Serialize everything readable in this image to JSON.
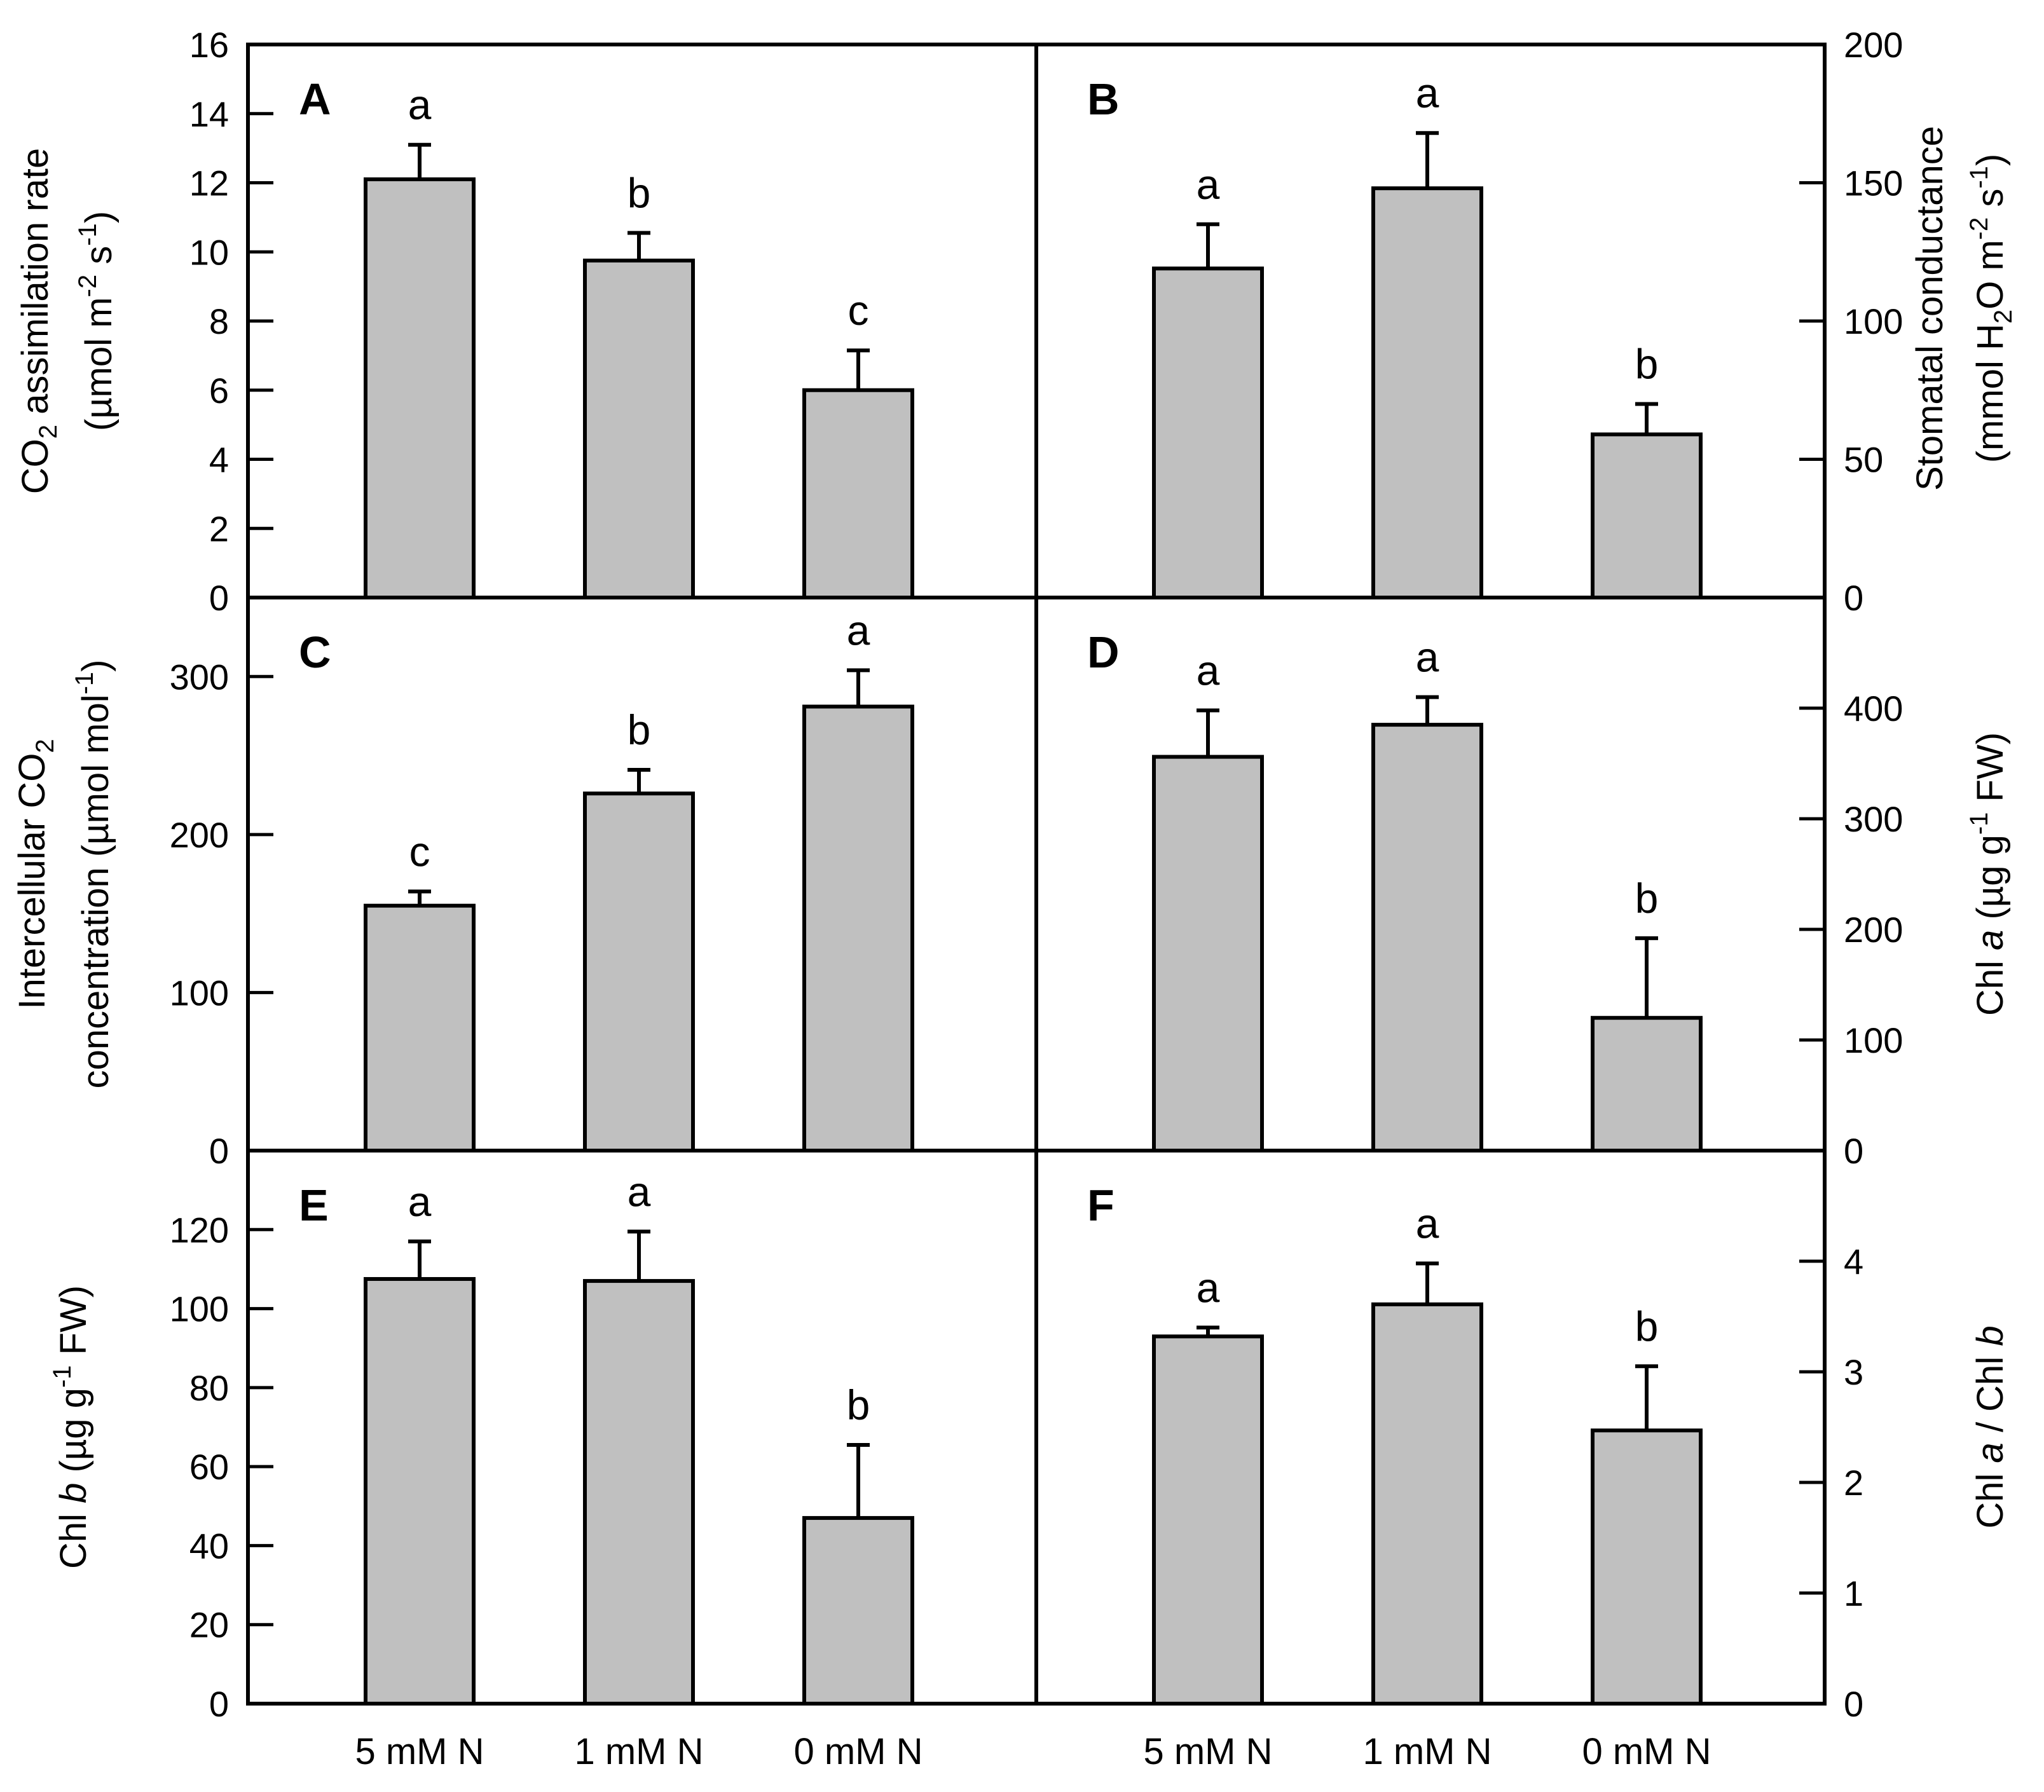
{
  "chart_data": [
    {
      "panel": "A",
      "type": "bar",
      "axis": "left",
      "categories": [
        "5 mM N",
        "1 mM N",
        "0 mM N"
      ],
      "values": [
        12.1,
        9.75,
        6.0
      ],
      "errors": [
        1.0,
        0.8,
        1.15
      ],
      "significance": [
        "a",
        "b",
        "c"
      ],
      "ylim": [
        0,
        16
      ],
      "yticks": [
        "0",
        "2",
        "4",
        "6",
        "8",
        "10",
        "12",
        "14",
        "16"
      ],
      "ylabel_line1": "CO",
      "ylabel_line1_sub": "2",
      "ylabel_line1_rest": " assimilation rate",
      "ylabel_line2_pre": "(µmol m",
      "ylabel_line2_sup1": "-2",
      "ylabel_line2_mid": " s",
      "ylabel_line2_sup2": "-1",
      "ylabel_line2_post": ")"
    },
    {
      "panel": "B",
      "type": "bar",
      "axis": "right",
      "categories": [
        "5 mM N",
        "1 mM N",
        "0 mM N"
      ],
      "values": [
        119,
        148,
        59
      ],
      "errors": [
        16,
        20,
        11
      ],
      "significance": [
        "a",
        "a",
        "b"
      ],
      "ylim": [
        0,
        200
      ],
      "yticks": [
        "0",
        "50",
        "100",
        "150",
        "200"
      ],
      "ylabel_line1": "Stomatal conductance",
      "ylabel_line2_pre": "(mmol H",
      "ylabel_line2_sub": "2",
      "ylabel_line2_mid": "O m",
      "ylabel_line2_sup1": "-2",
      "ylabel_line2_mid2": " s",
      "ylabel_line2_sup2": "-1",
      "ylabel_line2_post": ")"
    },
    {
      "panel": "C",
      "type": "bar",
      "axis": "left",
      "categories": [
        "5 mM N",
        "1 mM N",
        "0 mM N"
      ],
      "values": [
        155,
        226,
        281
      ],
      "errors": [
        9,
        15,
        23
      ],
      "significance": [
        "c",
        "b",
        "a"
      ],
      "ylim": [
        0,
        350
      ],
      "yticks": [
        "0",
        "100",
        "200",
        "300"
      ],
      "ylabel_line1_pre": "Intercellular CO",
      "ylabel_line1_sub": "2",
      "ylabel_line2_pre": "concentration (µmol mol",
      "ylabel_line2_sup": "-1",
      "ylabel_line2_post": ")"
    },
    {
      "panel": "D",
      "type": "bar",
      "axis": "right",
      "categories": [
        "5 mM N",
        "1 mM N",
        "0 mM N"
      ],
      "values": [
        356,
        385,
        120
      ],
      "errors": [
        42,
        25,
        72
      ],
      "significance": [
        "a",
        "a",
        "b"
      ],
      "ylim": [
        0,
        500
      ],
      "yticks": [
        "0",
        "100",
        "200",
        "300",
        "400"
      ],
      "ylabel_pre": "Chl ",
      "ylabel_italic": "a",
      "ylabel_mid": " (µg g",
      "ylabel_sup": "-1",
      "ylabel_post": " FW)"
    },
    {
      "panel": "E",
      "type": "bar",
      "axis": "left",
      "categories": [
        "5 mM N",
        "1 mM N",
        "0 mM N"
      ],
      "values": [
        107.5,
        107,
        47
      ],
      "errors": [
        9.5,
        12.5,
        18.5
      ],
      "significance": [
        "a",
        "a",
        "b"
      ],
      "ylim": [
        0,
        140
      ],
      "yticks": [
        "0",
        "20",
        "40",
        "60",
        "80",
        "100",
        "120"
      ],
      "ylabel_pre": "Chl ",
      "ylabel_italic": "b",
      "ylabel_mid": " (µg g",
      "ylabel_sup": "-1",
      "ylabel_post": " FW)"
    },
    {
      "panel": "F",
      "type": "bar",
      "axis": "right",
      "categories": [
        "5 mM N",
        "1 mM N",
        "0 mM N"
      ],
      "values": [
        3.32,
        3.61,
        2.47
      ],
      "errors": [
        0.08,
        0.37,
        0.58
      ],
      "significance": [
        "a",
        "a",
        "b"
      ],
      "ylim": [
        0,
        5
      ],
      "yticks": [
        "0",
        "1",
        "2",
        "3",
        "4"
      ],
      "ylabel_pre": "Chl ",
      "ylabel_italic1": "a",
      "ylabel_mid": " / Chl ",
      "ylabel_italic2": "b"
    }
  ],
  "x_categories": [
    "5 mM N",
    "1 mM N",
    "0 mM N"
  ]
}
